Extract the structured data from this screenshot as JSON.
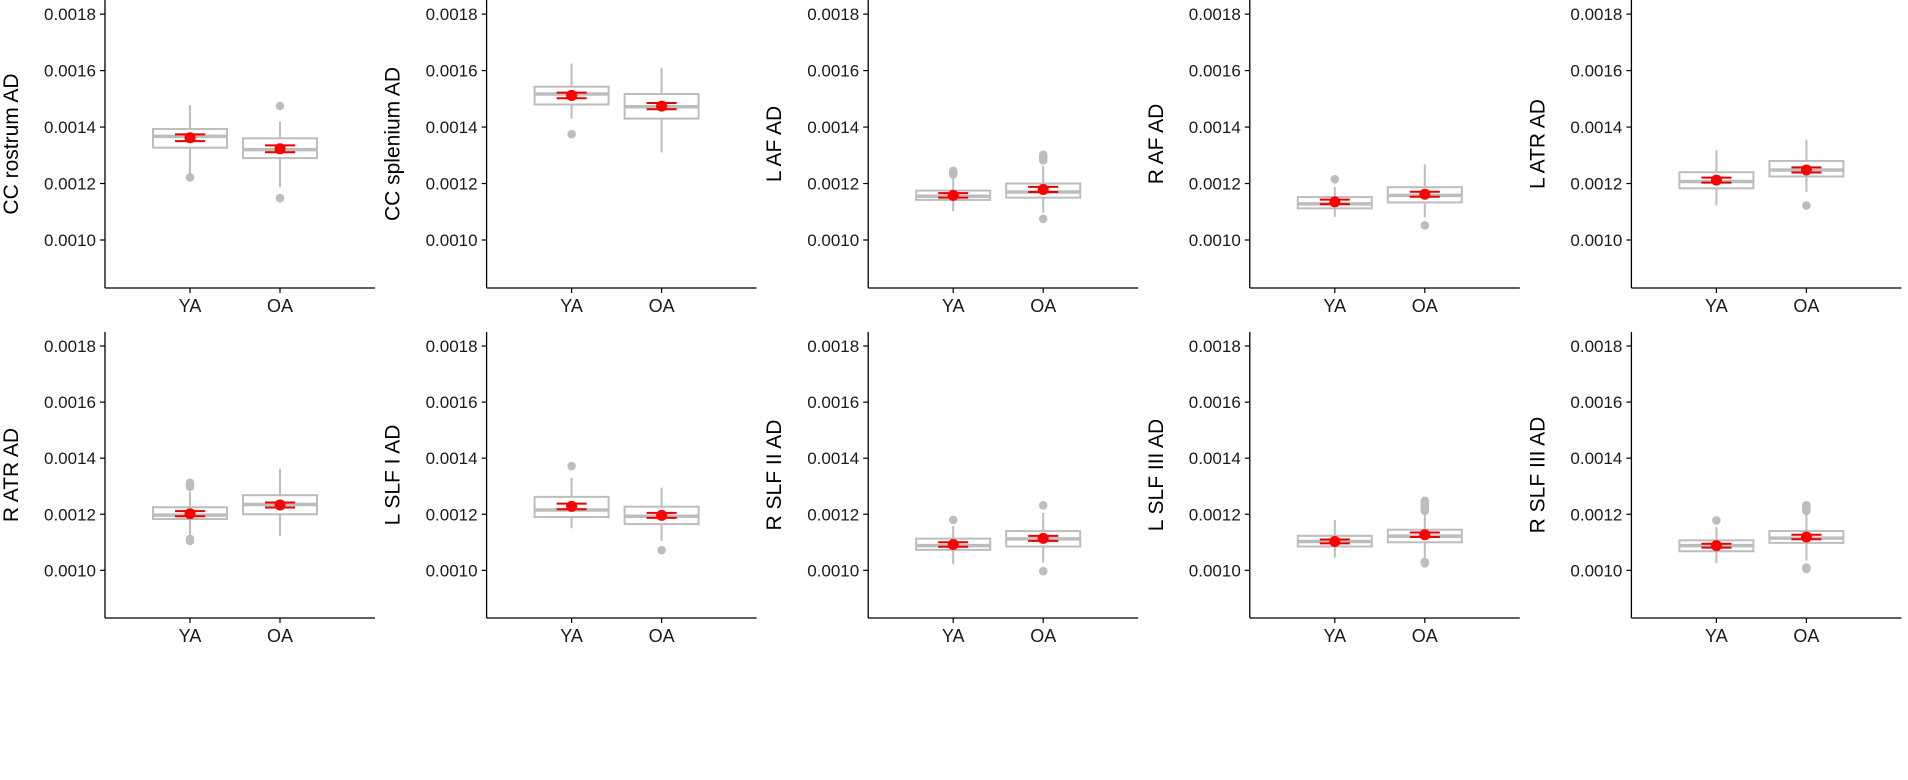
{
  "chart_data": [
    {
      "type": "box",
      "ylabel": "CC rostrum AD",
      "ylim": [
        0.00083,
        0.00185
      ],
      "yticks": [
        "0.0010",
        "0.0012",
        "0.0014",
        "0.0016",
        "0.0018"
      ],
      "categories": [
        "YA",
        "OA"
      ],
      "groups": [
        {
          "name": "YA",
          "min": 0.00122,
          "q1": 0.001327,
          "median": 0.001367,
          "q3": 0.001393,
          "max": 0.001477,
          "outliers": [
            0.001222
          ],
          "mean": 0.001362,
          "ci": [
            0.00135,
            0.001374
          ]
        },
        {
          "name": "OA",
          "min": 0.001187,
          "q1": 0.00129,
          "median": 0.00132,
          "q3": 0.00136,
          "max": 0.00142,
          "outliers": [
            0.001475,
            0.001148
          ],
          "mean": 0.001323,
          "ci": [
            0.001311,
            0.001335
          ]
        }
      ]
    },
    {
      "type": "box",
      "ylabel": "CC splenium AD",
      "ylim": [
        0.00083,
        0.00185
      ],
      "yticks": [
        "0.0010",
        "0.0012",
        "0.0014",
        "0.0016",
        "0.0018"
      ],
      "categories": [
        "YA",
        "OA"
      ],
      "groups": [
        {
          "name": "YA",
          "min": 0.00143,
          "q1": 0.00148,
          "median": 0.001517,
          "q3": 0.001543,
          "max": 0.001625,
          "outliers": [
            0.001375
          ],
          "mean": 0.001512,
          "ci": [
            0.001502,
            0.001522
          ]
        },
        {
          "name": "OA",
          "min": 0.00131,
          "q1": 0.00143,
          "median": 0.001472,
          "q3": 0.001517,
          "max": 0.00161,
          "outliers": [],
          "mean": 0.001474,
          "ci": [
            0.001463,
            0.001485
          ]
        }
      ]
    },
    {
      "type": "box",
      "ylabel": "L AF AD",
      "ylim": [
        0.00083,
        0.00185
      ],
      "yticks": [
        "0.0010",
        "0.0012",
        "0.0014",
        "0.0016",
        "0.0018"
      ],
      "categories": [
        "YA",
        "OA"
      ],
      "groups": [
        {
          "name": "YA",
          "min": 0.001102,
          "q1": 0.001142,
          "median": 0.001155,
          "q3": 0.001175,
          "max": 0.001218,
          "outliers": [
            0.001245,
            0.00124,
            0.001232
          ],
          "mean": 0.001158,
          "ci": [
            0.00115,
            0.001166
          ]
        },
        {
          "name": "OA",
          "min": 0.001097,
          "q1": 0.00115,
          "median": 0.00117,
          "q3": 0.0012,
          "max": 0.001262,
          "outliers": [
            0.001302,
            0.001295,
            0.00129,
            0.001282,
            0.001075
          ],
          "mean": 0.001179,
          "ci": [
            0.00117,
            0.001188
          ]
        }
      ]
    },
    {
      "type": "box",
      "ylabel": "R AF AD",
      "ylim": [
        0.00083,
        0.00185
      ],
      "yticks": [
        "0.0010",
        "0.0012",
        "0.0014",
        "0.0016",
        "0.0018"
      ],
      "categories": [
        "YA",
        "OA"
      ],
      "groups": [
        {
          "name": "YA",
          "min": 0.001082,
          "q1": 0.001112,
          "median": 0.001128,
          "q3": 0.001152,
          "max": 0.001188,
          "outliers": [
            0.001215
          ],
          "mean": 0.001135,
          "ci": [
            0.001127,
            0.001143
          ]
        },
        {
          "name": "OA",
          "min": 0.00108,
          "q1": 0.001133,
          "median": 0.001158,
          "q3": 0.001187,
          "max": 0.001268,
          "outliers": [
            0.001052
          ],
          "mean": 0.001162,
          "ci": [
            0.001153,
            0.001171
          ]
        }
      ]
    },
    {
      "type": "box",
      "ylabel": "L ATR AD",
      "ylim": [
        0.00083,
        0.00185
      ],
      "yticks": [
        "0.0010",
        "0.0012",
        "0.0014",
        "0.0016",
        "0.0018"
      ],
      "categories": [
        "YA",
        "OA"
      ],
      "groups": [
        {
          "name": "YA",
          "min": 0.001122,
          "q1": 0.001183,
          "median": 0.001207,
          "q3": 0.00124,
          "max": 0.001318,
          "outliers": [],
          "mean": 0.001212,
          "ci": [
            0.001203,
            0.001221
          ]
        },
        {
          "name": "OA",
          "min": 0.00117,
          "q1": 0.001225,
          "median": 0.001248,
          "q3": 0.00128,
          "max": 0.001355,
          "outliers": [
            0.001122
          ],
          "mean": 0.001248,
          "ci": [
            0.001239,
            0.001257
          ]
        }
      ]
    },
    {
      "type": "box",
      "ylabel": "R ATR AD",
      "ylim": [
        0.00083,
        0.00185
      ],
      "yticks": [
        "0.0010",
        "0.0012",
        "0.0014",
        "0.0016",
        "0.0018"
      ],
      "categories": [
        "YA",
        "OA"
      ],
      "groups": [
        {
          "name": "YA",
          "min": 0.001125,
          "q1": 0.001183,
          "median": 0.001197,
          "q3": 0.001225,
          "max": 0.00128,
          "outliers": [
            0.001312,
            0.001305,
            0.001298,
            0.001112,
            0.001105
          ],
          "mean": 0.001202,
          "ci": [
            0.001193,
            0.001211
          ]
        },
        {
          "name": "OA",
          "min": 0.001122,
          "q1": 0.0012,
          "median": 0.001235,
          "q3": 0.001268,
          "max": 0.001362,
          "outliers": [],
          "mean": 0.001233,
          "ci": [
            0.001224,
            0.001242
          ]
        }
      ]
    },
    {
      "type": "box",
      "ylabel": "L SLF I AD",
      "ylim": [
        0.00083,
        0.00185
      ],
      "yticks": [
        "0.0010",
        "0.0012",
        "0.0014",
        "0.0016",
        "0.0018"
      ],
      "categories": [
        "YA",
        "OA"
      ],
      "groups": [
        {
          "name": "YA",
          "min": 0.00115,
          "q1": 0.00119,
          "median": 0.001215,
          "q3": 0.001262,
          "max": 0.00133,
          "outliers": [
            0.001372
          ],
          "mean": 0.001228,
          "ci": [
            0.001218,
            0.001238
          ]
        },
        {
          "name": "OA",
          "min": 0.001105,
          "q1": 0.001165,
          "median": 0.001193,
          "q3": 0.001227,
          "max": 0.001295,
          "outliers": [
            0.001072
          ],
          "mean": 0.001196,
          "ci": [
            0.001187,
            0.001205
          ]
        }
      ]
    },
    {
      "type": "box",
      "ylabel": "R SLF II AD",
      "ylim": [
        0.00083,
        0.00185
      ],
      "yticks": [
        "0.0010",
        "0.0012",
        "0.0014",
        "0.0016",
        "0.0018"
      ],
      "categories": [
        "YA",
        "OA"
      ],
      "groups": [
        {
          "name": "YA",
          "min": 0.001022,
          "q1": 0.001073,
          "median": 0.001088,
          "q3": 0.001113,
          "max": 0.001158,
          "outliers": [
            0.00118
          ],
          "mean": 0.001092,
          "ci": [
            0.001084,
            0.0011
          ]
        },
        {
          "name": "OA",
          "min": 0.001028,
          "q1": 0.001085,
          "median": 0.001112,
          "q3": 0.00114,
          "max": 0.001205,
          "outliers": [
            0.001232,
            0.000997
          ],
          "mean": 0.001114,
          "ci": [
            0.001105,
            0.001123
          ]
        }
      ]
    },
    {
      "type": "box",
      "ylabel": "L SLF III AD",
      "ylim": [
        0.00083,
        0.00185
      ],
      "yticks": [
        "0.0010",
        "0.0012",
        "0.0014",
        "0.0016",
        "0.0018"
      ],
      "categories": [
        "YA",
        "OA"
      ],
      "groups": [
        {
          "name": "YA",
          "min": 0.001045,
          "q1": 0.001085,
          "median": 0.001103,
          "q3": 0.001123,
          "max": 0.00118,
          "outliers": [],
          "mean": 0.001103,
          "ci": [
            0.001096,
            0.00111
          ]
        },
        {
          "name": "OA",
          "min": 0.001045,
          "q1": 0.0011,
          "median": 0.001122,
          "q3": 0.001145,
          "max": 0.001198,
          "outliers": [
            0.001248,
            0.00124,
            0.001232,
            0.001225,
            0.001218,
            0.001212,
            0.00103,
            0.001025
          ],
          "mean": 0.001127,
          "ci": [
            0.001119,
            0.001135
          ]
        }
      ]
    },
    {
      "type": "box",
      "ylabel": "R SLF III AD",
      "ylim": [
        0.00083,
        0.00185
      ],
      "yticks": [
        "0.0010",
        "0.0012",
        "0.0014",
        "0.0016",
        "0.0018"
      ],
      "categories": [
        "YA",
        "OA"
      ],
      "groups": [
        {
          "name": "YA",
          "min": 0.001025,
          "q1": 0.001068,
          "median": 0.001088,
          "q3": 0.001107,
          "max": 0.001155,
          "outliers": [
            0.001178
          ],
          "mean": 0.001088,
          "ci": [
            0.001081,
            0.001095
          ]
        },
        {
          "name": "OA",
          "min": 0.001035,
          "q1": 0.001098,
          "median": 0.001115,
          "q3": 0.00114,
          "max": 0.001198,
          "outliers": [
            0.001232,
            0.001225,
            0.001218,
            0.001212,
            0.00101,
            0.001005
          ],
          "mean": 0.001119,
          "ci": [
            0.001111,
            0.001127
          ]
        }
      ]
    }
  ],
  "colors": {
    "box_stroke": "#bdbdbd",
    "median": "#bdbdbd",
    "outlier": "#bdbdbd",
    "mean": "#ff0000",
    "ci": "#e60000",
    "axis": "#000000",
    "text": "#1a1a1a"
  }
}
